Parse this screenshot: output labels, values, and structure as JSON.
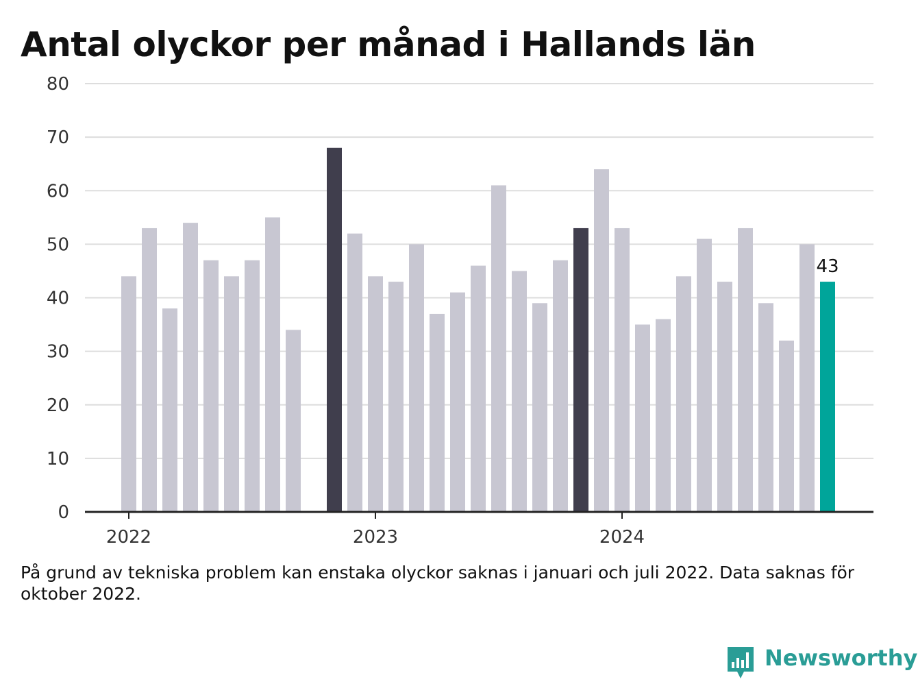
{
  "title": "Antal olyckor per månad i Hallands län",
  "footnote": "På grund av tekniska problem kan enstaka olyckor saknas i januari och juli 2022. Data saknas för oktober 2022.",
  "brand": {
    "name": "Newsworthy",
    "icon": "newsworthy-logo-icon",
    "color": "#2a9d96"
  },
  "colors": {
    "default_bar": "#c8c7d2",
    "highlight_bar": "#403e4d",
    "latest_bar": "#00a59a",
    "grid": "#dddddd",
    "axis": "#222222"
  },
  "chart_data": {
    "type": "bar",
    "title": "Antal olyckor per månad i Hallands län",
    "xlabel": "",
    "ylabel": "",
    "ylim": [
      0,
      80
    ],
    "yticks": [
      0,
      10,
      20,
      30,
      40,
      50,
      60,
      70,
      80
    ],
    "xtick_labels": [
      {
        "label": "2022",
        "at": "2022-01"
      },
      {
        "label": "2023",
        "at": "2023-01"
      },
      {
        "label": "2024",
        "at": "2024-01"
      }
    ],
    "grid": true,
    "series": [
      {
        "values": [
          {
            "x": "2022-01",
            "y": 44,
            "style": "default"
          },
          {
            "x": "2022-02",
            "y": 53,
            "style": "default"
          },
          {
            "x": "2022-03",
            "y": 38,
            "style": "default"
          },
          {
            "x": "2022-04",
            "y": 54,
            "style": "default"
          },
          {
            "x": "2022-05",
            "y": 47,
            "style": "default"
          },
          {
            "x": "2022-06",
            "y": 44,
            "style": "default"
          },
          {
            "x": "2022-07",
            "y": 47,
            "style": "default"
          },
          {
            "x": "2022-08",
            "y": 55,
            "style": "default"
          },
          {
            "x": "2022-09",
            "y": 34,
            "style": "default"
          },
          {
            "x": "2022-10",
            "y": null,
            "style": "default"
          },
          {
            "x": "2022-11",
            "y": 68,
            "style": "highlight"
          },
          {
            "x": "2022-12",
            "y": 52,
            "style": "default"
          },
          {
            "x": "2023-01",
            "y": 44,
            "style": "default"
          },
          {
            "x": "2023-02",
            "y": 43,
            "style": "default"
          },
          {
            "x": "2023-03",
            "y": 50,
            "style": "default"
          },
          {
            "x": "2023-04",
            "y": 37,
            "style": "default"
          },
          {
            "x": "2023-05",
            "y": 41,
            "style": "default"
          },
          {
            "x": "2023-06",
            "y": 46,
            "style": "default"
          },
          {
            "x": "2023-07",
            "y": 61,
            "style": "default"
          },
          {
            "x": "2023-08",
            "y": 45,
            "style": "default"
          },
          {
            "x": "2023-09",
            "y": 39,
            "style": "default"
          },
          {
            "x": "2023-10",
            "y": 47,
            "style": "default"
          },
          {
            "x": "2023-11",
            "y": 53,
            "style": "highlight"
          },
          {
            "x": "2023-12",
            "y": 64,
            "style": "default"
          },
          {
            "x": "2024-01",
            "y": 53,
            "style": "default"
          },
          {
            "x": "2024-02",
            "y": 35,
            "style": "default"
          },
          {
            "x": "2024-03",
            "y": 36,
            "style": "default"
          },
          {
            "x": "2024-04",
            "y": 44,
            "style": "default"
          },
          {
            "x": "2024-05",
            "y": 51,
            "style": "default"
          },
          {
            "x": "2024-06",
            "y": 43,
            "style": "default"
          },
          {
            "x": "2024-07",
            "y": 53,
            "style": "default"
          },
          {
            "x": "2024-08",
            "y": 39,
            "style": "default"
          },
          {
            "x": "2024-09",
            "y": 32,
            "style": "default"
          },
          {
            "x": "2024-10",
            "y": 50,
            "style": "default"
          },
          {
            "x": "2024-11",
            "y": 43,
            "style": "latest"
          }
        ]
      }
    ],
    "annotations": [
      {
        "x": "2024-11",
        "text": "43"
      }
    ]
  }
}
